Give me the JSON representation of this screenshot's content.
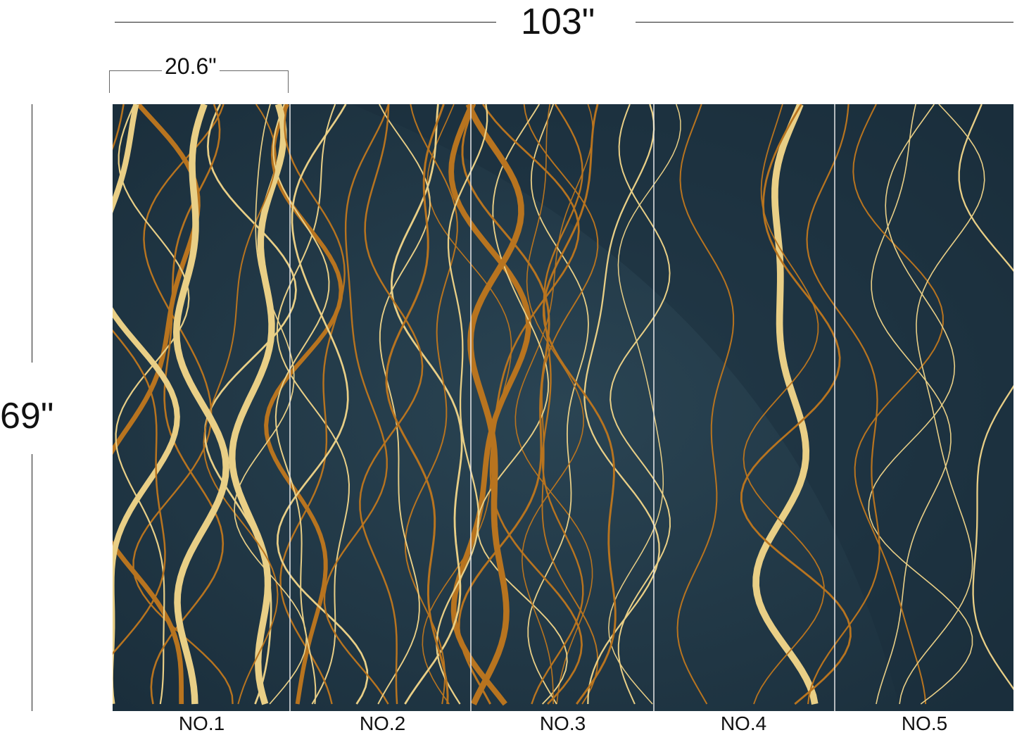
{
  "dimensions": {
    "total_width": "103\"",
    "panel_width": "20.6\"",
    "height": "69\""
  },
  "panels": [
    {
      "label": "NO.1"
    },
    {
      "label": "NO.2"
    },
    {
      "label": "NO.3"
    },
    {
      "label": "NO.4"
    },
    {
      "label": "NO.5"
    }
  ],
  "colors": {
    "background": "#1f3442",
    "gold_light": "#e9cf86",
    "gold_dark": "#b8741f",
    "divider": "#e8e8e8"
  }
}
